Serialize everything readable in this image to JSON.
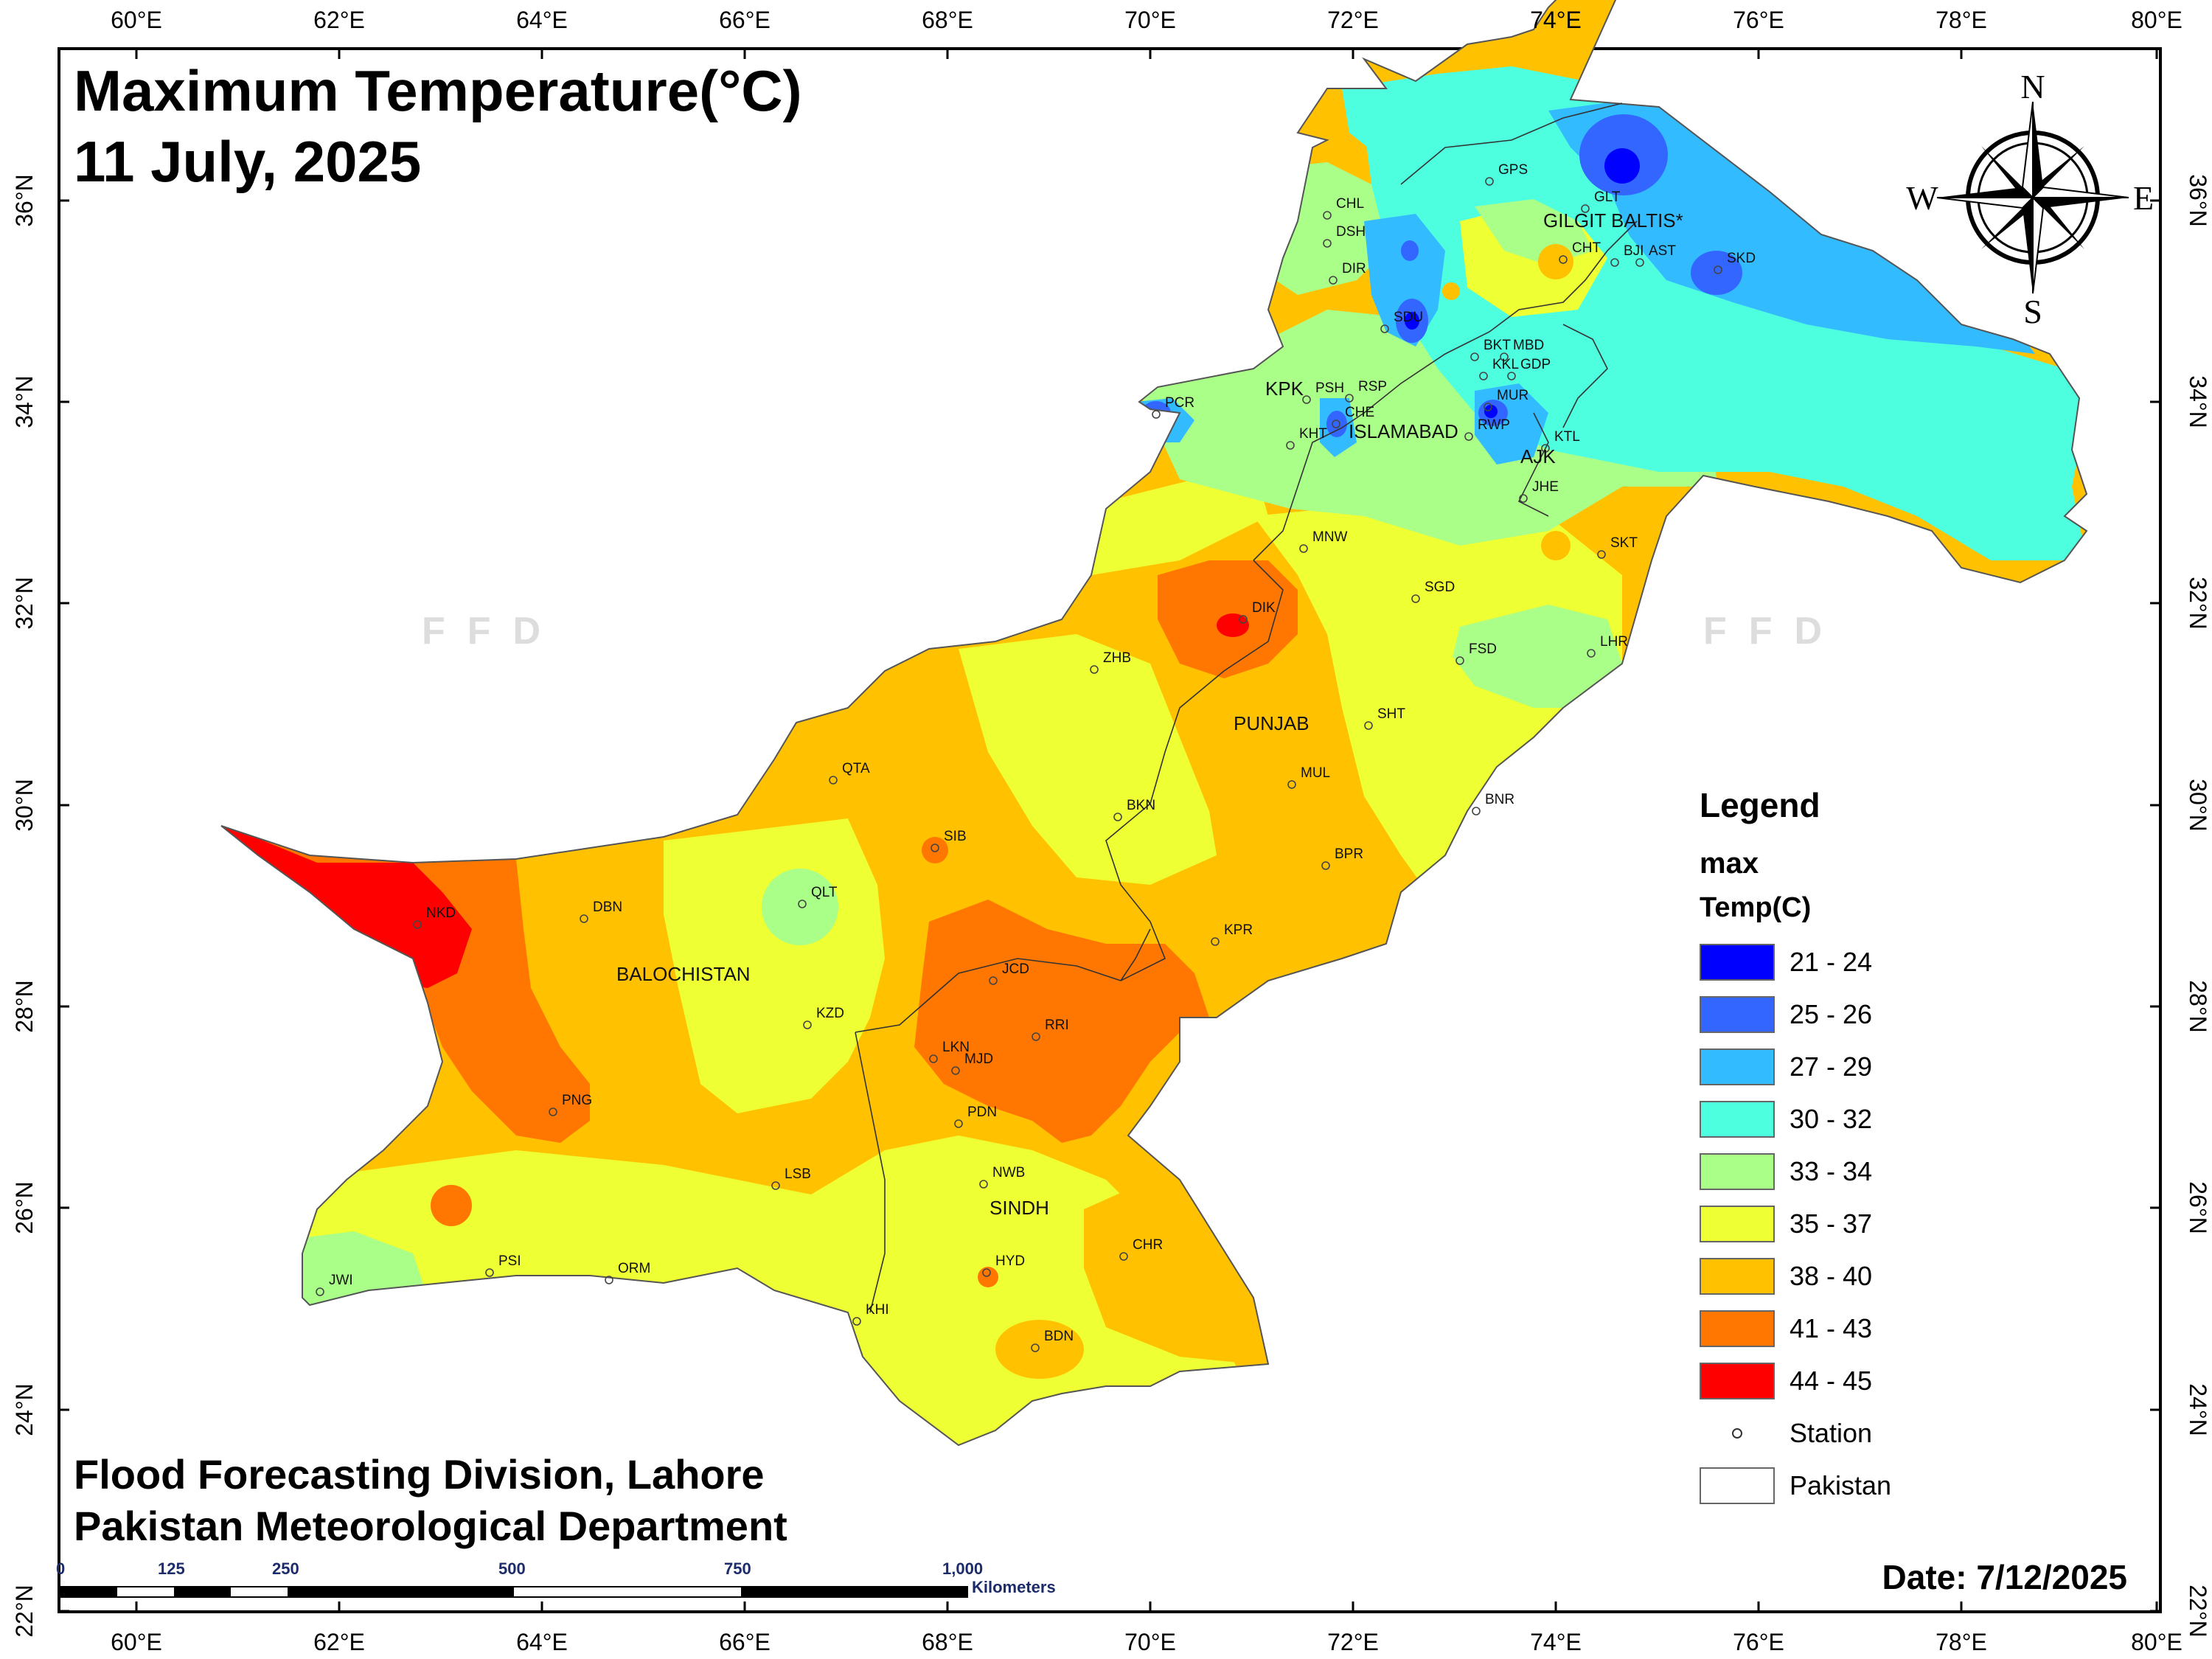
{
  "title": {
    "line1": "Maximum Temperature(°C)",
    "line2": "11 July, 2025"
  },
  "credits": {
    "line1": "Flood Forecasting Division, Lahore",
    "line2": "Pakistan Meteorological Department"
  },
  "date": "Date: 7/12/2025",
  "watermark": "FFD",
  "axes": {
    "lon_labels": [
      "60°E",
      "62°E",
      "64°E",
      "66°E",
      "68°E",
      "70°E",
      "72°E",
      "74°E",
      "76°E",
      "78°E",
      "80°E"
    ],
    "lat_labels": [
      "22°N",
      "24°N",
      "26°N",
      "28°N",
      "30°N",
      "32°N",
      "34°N",
      "36°N"
    ]
  },
  "compass": {
    "n": "N",
    "s": "S",
    "e": "E",
    "w": "W"
  },
  "legend": {
    "title": "Legend",
    "field": "max",
    "unit": "Temp(C)",
    "classes": [
      {
        "label": "21 - 24",
        "color": "#0000ff"
      },
      {
        "label": "25 - 26",
        "color": "#3366ff"
      },
      {
        "label": "27 - 29",
        "color": "#33bbff"
      },
      {
        "label": "30 - 32",
        "color": "#4dffdf"
      },
      {
        "label": "33 - 34",
        "color": "#aaff88"
      },
      {
        "label": "35 - 37",
        "color": "#eeff33"
      },
      {
        "label": "38 - 40",
        "color": "#ffc100"
      },
      {
        "label": "41 - 43",
        "color": "#ff7700"
      },
      {
        "label": "44 - 45",
        "color": "#ff0000"
      }
    ],
    "station_label": "Station",
    "boundary_label": "Pakistan"
  },
  "scale_bar": {
    "ticks": [
      "0",
      "125",
      "250",
      "500",
      "750",
      "1,000"
    ],
    "unit": "Kilometers"
  },
  "regions": [
    "GILGIT BALTIS*",
    "KPK",
    "ISLAMABAD",
    "AJK",
    "PUNJAB",
    "BALOCHISTAN",
    "SINDH"
  ],
  "stations": [
    "GPS",
    "GLT",
    "CHL",
    "DSH",
    "CHT",
    "BJI",
    "AST",
    "SKD",
    "DIR",
    "SDU",
    "BKT",
    "MBD",
    "KKL",
    "GDP",
    "PCR",
    "PSH",
    "RSP",
    "MUR",
    "CHE",
    "KHT",
    "RWP",
    "KTL",
    "JHE",
    "SKT",
    "MNW",
    "SGD",
    "DIK",
    "ZHB",
    "FSD",
    "LHR",
    "SHT",
    "QTA",
    "MUL",
    "BNR",
    "BKN",
    "SIB",
    "BPR",
    "NKD",
    "DBN",
    "QLT",
    "KPR",
    "JCD",
    "KZD",
    "RRI",
    "LKN",
    "MJD",
    "PNG",
    "PDN",
    "LSB",
    "NWB",
    "CHR",
    "HYD",
    "PSI",
    "ORM",
    "JWI",
    "KHI",
    "BDN"
  ]
}
